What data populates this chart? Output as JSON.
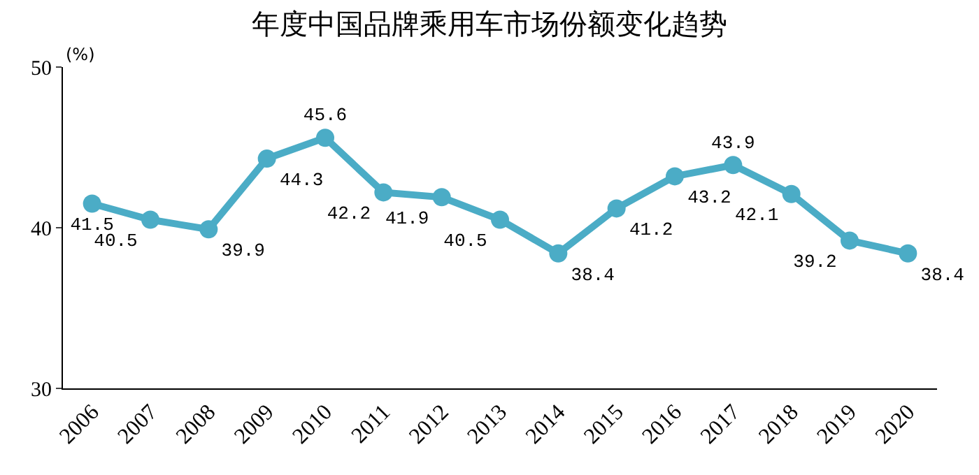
{
  "chart_data": {
    "type": "line",
    "title": "年度中国品牌乘用车市场份额变化趋势",
    "ylabel": "(%)",
    "categories": [
      "2006",
      "2007",
      "2008",
      "2009",
      "2010",
      "2011",
      "2012",
      "2013",
      "2014",
      "2015",
      "2016",
      "2017",
      "2018",
      "2019",
      "2020"
    ],
    "series": [
      {
        "color": "#4bacc6",
        "values": [
          41.5,
          40.5,
          39.9,
          44.3,
          45.6,
          42.2,
          41.9,
          40.5,
          38.4,
          41.2,
          43.2,
          43.9,
          42.1,
          39.2,
          38.4
        ]
      }
    ],
    "ylim": [
      30,
      50
    ],
    "yticks": [
      30,
      40,
      50
    ],
    "grid": false,
    "legend": false,
    "marker": "circle",
    "line_style": "solid",
    "data_labels": true
  }
}
